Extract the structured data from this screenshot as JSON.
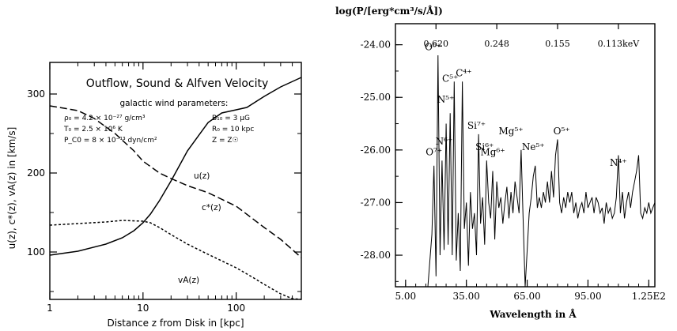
{
  "chart_data": [
    {
      "type": "line",
      "title": "Outflow, Sound & Alfven Velocity",
      "subtitle": "galactic wind parameters:",
      "params_left": [
        "ρ₀ = 4.2 × 10⁻²⁷ g/cm³",
        "T₀ = 2.5 × 10⁶ K",
        "P_C0 = 8 × 10⁻¹³ dyn/cm²"
      ],
      "params_right": [
        "B₁₀ = 3 μG",
        "R₀ = 10 kpc",
        "Z = Z☉"
      ],
      "xlabel": "Distance z from Disk in [kpc]",
      "ylabel": "u(z), c*(z), vA(z) in [km/s]",
      "xscale": "log",
      "xlim": [
        1,
        500
      ],
      "ylim": [
        40,
        340
      ],
      "xticks": [
        1,
        10,
        100
      ],
      "xtick_labels": [
        "1",
        "10",
        "100"
      ],
      "yticks": [
        100,
        200,
        300
      ],
      "ytick_labels": [
        "100",
        "200",
        "300"
      ],
      "series": [
        {
          "name": "u(z)",
          "style": "solid",
          "x": [
            1,
            2,
            4,
            6,
            8,
            10,
            12,
            15,
            20,
            30,
            50,
            70,
            100,
            130,
            200,
            300,
            500
          ],
          "y": [
            96,
            101,
            110,
            118,
            127,
            137,
            148,
            165,
            190,
            228,
            264,
            276,
            280,
            283,
            297,
            309,
            321
          ]
        },
        {
          "name": "c*(z)",
          "style": "dashed",
          "x": [
            1,
            2,
            3,
            5,
            8,
            10,
            15,
            20,
            30,
            50,
            100,
            200,
            300,
            500
          ],
          "y": [
            285,
            279,
            269,
            250,
            228,
            215,
            200,
            193,
            184,
            175,
            158,
            131,
            116,
            93
          ]
        },
        {
          "name": "vA(z)",
          "style": "dotted",
          "x": [
            1,
            2,
            4,
            6,
            10,
            12,
            15,
            20,
            30,
            50,
            100,
            150,
            200,
            300,
            400,
            500
          ],
          "y": [
            134,
            136,
            138,
            140,
            139,
            137,
            131,
            122,
            110,
            97,
            80,
            68,
            59,
            47,
            41,
            40
          ]
        }
      ]
    },
    {
      "type": "line",
      "title": "log(P/[erg*cm³/s/Å])",
      "xlabel": "Wavelength in Å",
      "xlim": [
        0,
        128
      ],
      "ylim": [
        -28.6,
        -23.6
      ],
      "xticks": [
        5,
        35,
        65,
        95,
        125
      ],
      "xtick_labels": [
        "5.00",
        "35.00",
        "65.00",
        "95.00",
        "1.25E2"
      ],
      "yticks": [
        -24,
        -25,
        -26,
        -27,
        -28
      ],
      "ytick_labels": [
        "-24.00",
        "-25.00",
        "-26.00",
        "-27.00",
        "-28.00"
      ],
      "top_ticks": [
        20,
        50,
        80,
        110
      ],
      "top_tick_labels": [
        "0.620",
        "0.248",
        "0.155",
        "0.113keV"
      ],
      "line_labels": [
        {
          "text": "O⁶⁺",
          "x": 18.6,
          "y": -24.1
        },
        {
          "text": "C⁵⁺",
          "x": 27.0,
          "y": -24.7
        },
        {
          "text": "C⁴⁺",
          "x": 33.7,
          "y": -24.6
        },
        {
          "text": "N⁵⁺",
          "x": 24.8,
          "y": -25.1
        },
        {
          "text": "N⁶⁺",
          "x": 24.0,
          "y": -25.9
        },
        {
          "text": "O⁷⁺",
          "x": 19.0,
          "y": -26.1
        },
        {
          "text": "Si⁷⁺",
          "x": 40.0,
          "y": -25.6
        },
        {
          "text": "Si⁶⁺",
          "x": 44.0,
          "y": -26.0
        },
        {
          "text": "Mg⁶⁺",
          "x": 48.0,
          "y": -26.1
        },
        {
          "text": "Mg⁵⁺",
          "x": 57.0,
          "y": -25.7
        },
        {
          "text": "Ne⁵⁺",
          "x": 68.0,
          "y": -26.0
        },
        {
          "text": "O⁵⁺",
          "x": 82.0,
          "y": -25.7
        },
        {
          "text": "N⁴⁺",
          "x": 110.0,
          "y": -26.3
        }
      ],
      "x": [
        4,
        8,
        12,
        16,
        18,
        19,
        20,
        21,
        22,
        23,
        24,
        25,
        26,
        27,
        28,
        29,
        30,
        31,
        32,
        33,
        34,
        35,
        36,
        37,
        38,
        39,
        40,
        41,
        42,
        43,
        44,
        45,
        46,
        47,
        48,
        49,
        50,
        51,
        52,
        53,
        54,
        55,
        56,
        57,
        58,
        59,
        60,
        61,
        62,
        63,
        64,
        65,
        66,
        67,
        68,
        69,
        70,
        71,
        72,
        73,
        74,
        75,
        76,
        77,
        78,
        79,
        80,
        81,
        82,
        83,
        84,
        85,
        86,
        87,
        88,
        89,
        90,
        91,
        92,
        93,
        94,
        95,
        96,
        97,
        98,
        99,
        100,
        101,
        102,
        103,
        104,
        105,
        106,
        107,
        108,
        109,
        110,
        111,
        112,
        113,
        114,
        115,
        116,
        117,
        118,
        119,
        120,
        121,
        122,
        123,
        124,
        125,
        126,
        127,
        128
      ],
      "y": [
        -28.6,
        -28.6,
        -28.6,
        -28.6,
        -27.6,
        -26.3,
        -28.4,
        -24.2,
        -28.0,
        -26.2,
        -27.9,
        -25.5,
        -27.8,
        -25.3,
        -28.0,
        -24.7,
        -28.1,
        -27.2,
        -28.3,
        -24.7,
        -27.5,
        -27.0,
        -28.2,
        -26.8,
        -27.5,
        -27.2,
        -28.0,
        -25.7,
        -27.4,
        -26.9,
        -27.8,
        -26.2,
        -27.0,
        -27.3,
        -26.4,
        -27.7,
        -26.6,
        -27.1,
        -26.9,
        -27.4,
        -27.0,
        -26.7,
        -27.3,
        -26.8,
        -27.2,
        -26.6,
        -26.9,
        -27.2,
        -26.0,
        -27.3,
        -28.6,
        -27.9,
        -27.2,
        -26.9,
        -26.5,
        -26.3,
        -27.1,
        -26.9,
        -27.1,
        -26.8,
        -27.0,
        -26.6,
        -27.0,
        -26.4,
        -26.9,
        -26.1,
        -25.8,
        -27.0,
        -27.2,
        -26.9,
        -27.1,
        -26.8,
        -27.0,
        -26.8,
        -27.2,
        -27.0,
        -27.3,
        -27.1,
        -27.0,
        -27.2,
        -26.8,
        -27.1,
        -27.0,
        -26.9,
        -27.2,
        -26.9,
        -27.0,
        -27.2,
        -27.1,
        -27.4,
        -27.0,
        -27.2,
        -27.1,
        -27.3,
        -27.2,
        -26.9,
        -26.1,
        -27.2,
        -26.8,
        -27.3,
        -27.0,
        -26.8,
        -27.1,
        -26.8,
        -26.6,
        -26.4,
        -26.1,
        -27.2,
        -27.3,
        -27.1,
        -27.2,
        -27.0,
        -27.2,
        -27.1,
        -27.0
      ]
    }
  ]
}
